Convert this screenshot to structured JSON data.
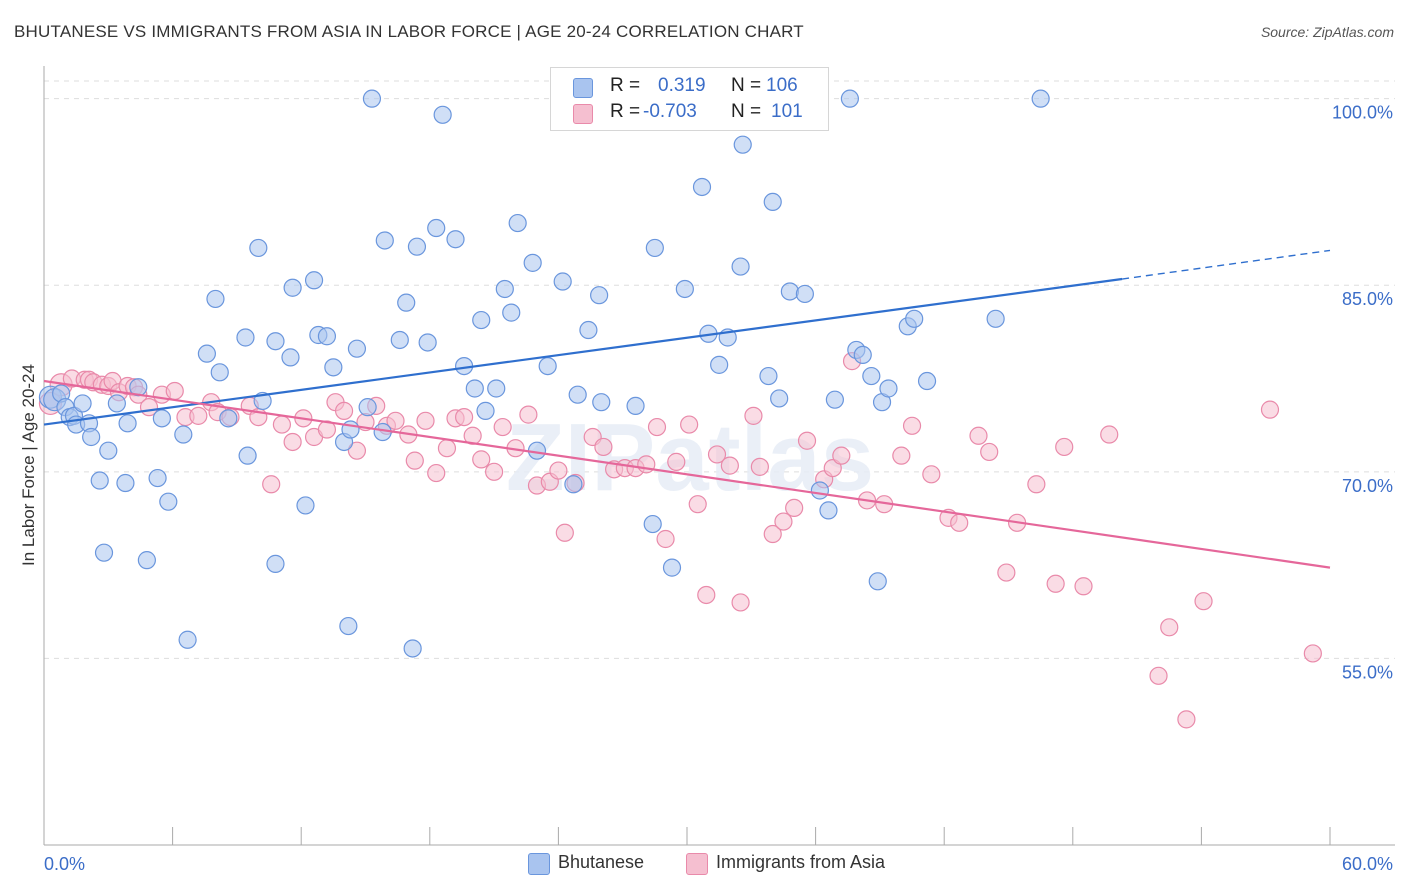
{
  "title": "BHUTANESE VS IMMIGRANTS FROM ASIA IN LABOR FORCE | AGE 20-24 CORRELATION CHART",
  "source": "Source: ZipAtlas.com",
  "watermark": "ZIPatlas",
  "legend": {
    "rows": [
      {
        "r_label": "R =",
        "r_value": "0.319",
        "n_label": "N =",
        "n_value": "106"
      },
      {
        "r_label": "R =",
        "r_value": "-0.703",
        "n_label": "N =",
        "n_value": "101"
      }
    ]
  },
  "colors": {
    "blue_fill": "#a9c4ef",
    "blue_stroke": "#6a96dd",
    "blue_line": "#2f6fce",
    "pink_fill": "#f5bfd0",
    "pink_stroke": "#e98aaa",
    "pink_line": "#e5679a",
    "tick_label": "#3b6dc8",
    "grid": "#dddddd"
  },
  "chart_data": {
    "type": "scatter",
    "title": "BHUTANESE VS IMMIGRANTS FROM ASIA IN LABOR FORCE | AGE 20-24 CORRELATION CHART",
    "xlabel": "",
    "ylabel": "In Labor Force | Age 20-24",
    "xlim": [
      0,
      60
    ],
    "ylim": [
      40,
      101.5
    ],
    "x_tick_labels": [
      "0.0%",
      "60.0%"
    ],
    "y_ticks": [
      55,
      70,
      85,
      100
    ],
    "y_tick_labels": [
      "55.0%",
      "70.0%",
      "85.0%",
      "100.0%"
    ],
    "grid": true,
    "legend_position": "bottom",
    "series": [
      {
        "name": "Bhutanese",
        "r": 0.319,
        "n": 106,
        "trend": {
          "x0": 0,
          "y0": 73.8,
          "x1": 50.3,
          "y1": 85.5,
          "dashed_to_x": 60,
          "dashed_to_y": 87.8
        },
        "points": [
          [
            0.3,
            76.0
          ],
          [
            0.5,
            75.8
          ],
          [
            0.8,
            76.3
          ],
          [
            1.0,
            75.2
          ],
          [
            1.2,
            74.4
          ],
          [
            1.4,
            74.5
          ],
          [
            1.5,
            73.8
          ],
          [
            1.8,
            75.5
          ],
          [
            2.1,
            73.9
          ],
          [
            2.2,
            72.8
          ],
          [
            2.6,
            69.3
          ],
          [
            2.8,
            63.5
          ],
          [
            3.0,
            71.7
          ],
          [
            3.4,
            75.5
          ],
          [
            3.8,
            69.1
          ],
          [
            3.9,
            73.9
          ],
          [
            4.4,
            76.8
          ],
          [
            4.8,
            62.9
          ],
          [
            5.3,
            69.5
          ],
          [
            5.5,
            74.3
          ],
          [
            5.8,
            67.6
          ],
          [
            6.5,
            73.0
          ],
          [
            6.7,
            56.5
          ],
          [
            7.6,
            79.5
          ],
          [
            8.0,
            83.9
          ],
          [
            8.2,
            78.0
          ],
          [
            8.6,
            74.3
          ],
          [
            9.5,
            71.3
          ],
          [
            9.4,
            80.8
          ],
          [
            10.0,
            88.0
          ],
          [
            10.2,
            75.7
          ],
          [
            10.8,
            80.5
          ],
          [
            10.8,
            62.6
          ],
          [
            11.5,
            79.2
          ],
          [
            11.6,
            84.8
          ],
          [
            12.2,
            67.3
          ],
          [
            12.6,
            85.4
          ],
          [
            12.8,
            81.0
          ],
          [
            13.2,
            80.9
          ],
          [
            13.5,
            78.4
          ],
          [
            14.0,
            72.4
          ],
          [
            14.2,
            57.6
          ],
          [
            14.3,
            73.4
          ],
          [
            14.6,
            79.9
          ],
          [
            15.1,
            75.2
          ],
          [
            15.3,
            100.0
          ],
          [
            15.8,
            73.2
          ],
          [
            15.9,
            88.6
          ],
          [
            16.6,
            80.6
          ],
          [
            16.9,
            83.6
          ],
          [
            17.2,
            55.8
          ],
          [
            17.4,
            88.1
          ],
          [
            17.9,
            80.4
          ],
          [
            18.3,
            89.6
          ],
          [
            18.6,
            98.7
          ],
          [
            19.2,
            88.7
          ],
          [
            19.6,
            78.5
          ],
          [
            20.1,
            76.7
          ],
          [
            20.4,
            82.2
          ],
          [
            20.6,
            74.9
          ],
          [
            21.1,
            76.7
          ],
          [
            21.5,
            84.7
          ],
          [
            21.8,
            82.8
          ],
          [
            22.1,
            90.0
          ],
          [
            22.8,
            86.8
          ],
          [
            23.0,
            71.7
          ],
          [
            23.5,
            78.5
          ],
          [
            24.2,
            85.3
          ],
          [
            24.7,
            69.0
          ],
          [
            24.9,
            76.2
          ],
          [
            25.4,
            81.4
          ],
          [
            25.9,
            84.2
          ],
          [
            26.0,
            75.6
          ],
          [
            27.6,
            75.3
          ],
          [
            28.4,
            65.8
          ],
          [
            28.5,
            88.0
          ],
          [
            29.3,
            62.3
          ],
          [
            29.9,
            84.7
          ],
          [
            30.7,
            92.9
          ],
          [
            31.0,
            81.1
          ],
          [
            31.5,
            78.6
          ],
          [
            31.9,
            80.8
          ],
          [
            32.5,
            86.5
          ],
          [
            32.6,
            96.3
          ],
          [
            33.8,
            77.7
          ],
          [
            34.0,
            91.7
          ],
          [
            34.3,
            75.9
          ],
          [
            34.8,
            84.5
          ],
          [
            35.5,
            84.3
          ],
          [
            36.2,
            68.5
          ],
          [
            36.6,
            66.9
          ],
          [
            36.9,
            75.8
          ],
          [
            37.6,
            100.0
          ],
          [
            37.9,
            79.8
          ],
          [
            38.2,
            79.4
          ],
          [
            38.6,
            77.7
          ],
          [
            38.9,
            61.2
          ],
          [
            39.1,
            75.6
          ],
          [
            39.4,
            76.7
          ],
          [
            40.3,
            81.7
          ],
          [
            40.6,
            82.3
          ],
          [
            41.2,
            77.3
          ],
          [
            44.4,
            82.3
          ],
          [
            46.5,
            100.0
          ]
        ]
      },
      {
        "name": "Immigrants from Asia",
        "r": -0.703,
        "n": 101,
        "trend": {
          "x0": 0,
          "y0": 77.3,
          "x1": 60,
          "y1": 62.3
        },
        "points": [
          [
            0.3,
            75.5
          ],
          [
            0.8,
            77.0
          ],
          [
            1.3,
            77.5
          ],
          [
            1.9,
            77.4
          ],
          [
            2.1,
            77.4
          ],
          [
            2.3,
            77.2
          ],
          [
            2.7,
            77.0
          ],
          [
            3.0,
            76.9
          ],
          [
            3.2,
            77.3
          ],
          [
            3.5,
            76.4
          ],
          [
            3.9,
            76.9
          ],
          [
            4.2,
            76.8
          ],
          [
            4.4,
            76.2
          ],
          [
            4.9,
            75.2
          ],
          [
            5.5,
            76.2
          ],
          [
            6.1,
            76.5
          ],
          [
            6.6,
            74.4
          ],
          [
            7.2,
            74.5
          ],
          [
            7.8,
            75.6
          ],
          [
            8.1,
            74.8
          ],
          [
            8.7,
            74.4
          ],
          [
            9.6,
            75.3
          ],
          [
            10.0,
            74.4
          ],
          [
            10.6,
            69.0
          ],
          [
            11.1,
            73.8
          ],
          [
            11.6,
            72.4
          ],
          [
            12.1,
            74.3
          ],
          [
            12.6,
            72.8
          ],
          [
            13.2,
            73.4
          ],
          [
            13.6,
            75.6
          ],
          [
            14.0,
            74.9
          ],
          [
            14.6,
            71.7
          ],
          [
            15.0,
            74.0
          ],
          [
            15.5,
            75.3
          ],
          [
            16.0,
            73.7
          ],
          [
            16.4,
            74.1
          ],
          [
            17.0,
            73.0
          ],
          [
            17.3,
            70.9
          ],
          [
            17.8,
            74.1
          ],
          [
            18.3,
            69.9
          ],
          [
            18.8,
            71.9
          ],
          [
            19.2,
            74.3
          ],
          [
            19.6,
            74.4
          ],
          [
            20.0,
            72.9
          ],
          [
            20.4,
            71.0
          ],
          [
            21.0,
            70.0
          ],
          [
            21.4,
            73.6
          ],
          [
            22.0,
            71.9
          ],
          [
            22.6,
            74.6
          ],
          [
            23.0,
            68.9
          ],
          [
            23.6,
            69.2
          ],
          [
            24.0,
            70.1
          ],
          [
            24.3,
            65.1
          ],
          [
            24.8,
            69.1
          ],
          [
            25.6,
            72.8
          ],
          [
            26.1,
            72.0
          ],
          [
            26.6,
            70.2
          ],
          [
            27.1,
            70.3
          ],
          [
            27.6,
            70.3
          ],
          [
            28.1,
            70.6
          ],
          [
            28.6,
            73.6
          ],
          [
            29.0,
            64.6
          ],
          [
            29.5,
            70.8
          ],
          [
            30.1,
            73.8
          ],
          [
            30.5,
            67.4
          ],
          [
            30.9,
            60.1
          ],
          [
            31.4,
            71.4
          ],
          [
            32.0,
            70.5
          ],
          [
            32.5,
            59.5
          ],
          [
            33.1,
            74.5
          ],
          [
            33.4,
            70.4
          ],
          [
            34.0,
            65.0
          ],
          [
            34.5,
            66.0
          ],
          [
            35.0,
            67.1
          ],
          [
            35.6,
            72.5
          ],
          [
            36.4,
            69.4
          ],
          [
            36.8,
            70.3
          ],
          [
            37.2,
            71.3
          ],
          [
            37.7,
            78.9
          ],
          [
            38.4,
            67.7
          ],
          [
            39.2,
            67.4
          ],
          [
            40.0,
            71.3
          ],
          [
            40.5,
            73.7
          ],
          [
            41.4,
            69.8
          ],
          [
            42.2,
            66.3
          ],
          [
            42.7,
            65.9
          ],
          [
            43.6,
            72.9
          ],
          [
            44.1,
            71.6
          ],
          [
            44.9,
            61.9
          ],
          [
            45.4,
            65.9
          ],
          [
            46.3,
            69.0
          ],
          [
            47.2,
            61.0
          ],
          [
            47.6,
            72.0
          ],
          [
            48.5,
            60.8
          ],
          [
            49.7,
            73.0
          ],
          [
            52.0,
            53.6
          ],
          [
            52.5,
            57.5
          ],
          [
            53.3,
            50.1
          ],
          [
            54.1,
            59.6
          ],
          [
            57.2,
            75.0
          ],
          [
            59.2,
            55.4
          ]
        ]
      }
    ]
  }
}
